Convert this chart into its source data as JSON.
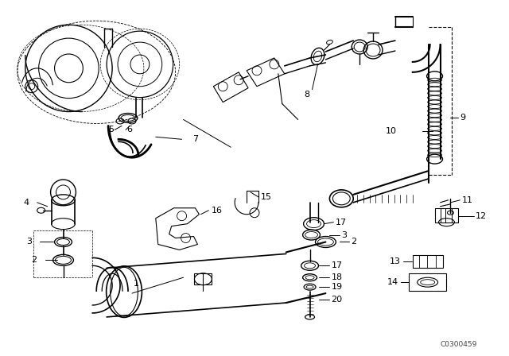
{
  "background_color": "#ffffff",
  "diagram_code": "C0300459",
  "fig_width": 6.4,
  "fig_height": 4.48,
  "dpi": 100,
  "label_fs": 8.0
}
